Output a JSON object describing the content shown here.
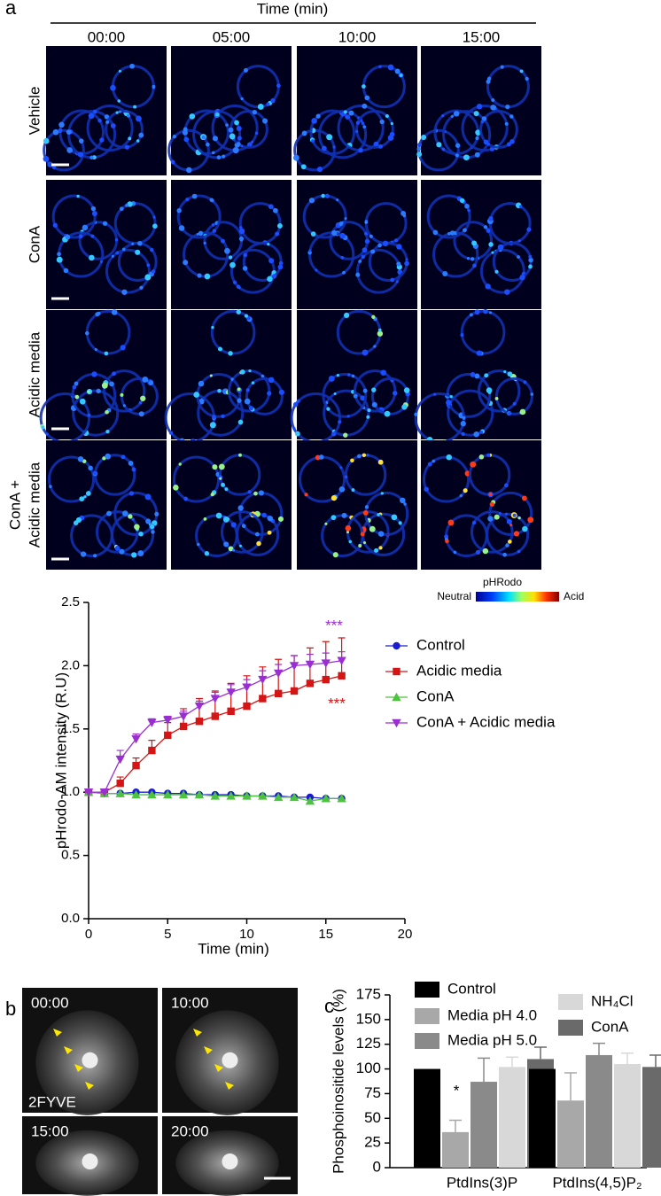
{
  "panel_a": {
    "label": "a",
    "header": "Time (min)",
    "timepoints": [
      "00:00",
      "05:00",
      "10:00",
      "15:00"
    ],
    "rows": [
      "Vehicle",
      "ConA",
      "Acidic media",
      "ConA +",
      "Acidic media"
    ],
    "colorbar": {
      "title": "pHRodo",
      "low": "Neutral",
      "high": "Acid"
    }
  },
  "panel_b": {
    "label": "b",
    "timepoints": [
      "00:00",
      "10:00",
      "15:00",
      "20:00"
    ],
    "probe": "2FYVE"
  },
  "panel_c": {
    "label": "c"
  },
  "chart_data": [
    {
      "type": "line",
      "xlabel": "Time (min)",
      "ylabel": "pHrodo-AM intensity (R.U)",
      "x": [
        0,
        1,
        2,
        3,
        4,
        5,
        6,
        7,
        8,
        9,
        10,
        11,
        12,
        13,
        14,
        15,
        16
      ],
      "series": [
        {
          "name": "Control",
          "color": "#1c1ccf",
          "marker": "circle",
          "values": [
            1.0,
            0.99,
            0.99,
            1.0,
            1.0,
            0.99,
            0.99,
            0.98,
            0.98,
            0.98,
            0.97,
            0.97,
            0.97,
            0.96,
            0.96,
            0.95,
            0.95
          ]
        },
        {
          "name": "Acidic media",
          "color": "#d41515",
          "marker": "square",
          "values": [
            1.0,
            1.0,
            1.07,
            1.21,
            1.33,
            1.45,
            1.52,
            1.56,
            1.6,
            1.64,
            1.68,
            1.74,
            1.78,
            1.8,
            1.86,
            1.89,
            1.92
          ],
          "errors": [
            0,
            0.02,
            0.05,
            0.06,
            0.08,
            0.1,
            0.14,
            0.18,
            0.2,
            0.22,
            0.24,
            0.25,
            0.27,
            0.28,
            0.28,
            0.3,
            0.3
          ]
        },
        {
          "name": "ConA",
          "color": "#4cc23f",
          "marker": "triangle-up",
          "values": [
            1.0,
            0.99,
            0.99,
            0.98,
            0.98,
            0.98,
            0.98,
            0.98,
            0.97,
            0.97,
            0.97,
            0.97,
            0.96,
            0.96,
            0.93,
            0.95,
            0.95
          ]
        },
        {
          "name": "ConA + Acidic media",
          "color": "#9a2fd1",
          "marker": "triangle-down",
          "values": [
            1.0,
            1.0,
            1.26,
            1.42,
            1.55,
            1.57,
            1.6,
            1.68,
            1.74,
            1.79,
            1.83,
            1.89,
            1.94,
            2.0,
            2.01,
            2.02,
            2.04
          ],
          "errors": [
            0,
            0.02,
            0.07,
            0.04,
            0.03,
            0.03,
            0.04,
            0.04,
            0.05,
            0.06,
            0.06,
            0.07,
            0.07,
            0.08,
            0.08,
            0.08,
            0.07
          ]
        }
      ],
      "annotations": [
        {
          "text": "***",
          "color": "#9a2fd1"
        },
        {
          "text": "***",
          "color": "#d41515"
        }
      ],
      "xlim": [
        0,
        20
      ],
      "xticks": [
        0,
        5,
        10,
        15,
        20
      ],
      "ylim": [
        0,
        2.5
      ],
      "yticks": [
        {
          "value": 0,
          "label": "0.0"
        },
        0.5,
        {
          "value": 1,
          "label": "1.0"
        },
        1.5,
        {
          "value": 2,
          "label": "2.0"
        },
        2.5
      ]
    },
    {
      "type": "bar",
      "ylabel": "Phosphoinositide levels (%)",
      "categories": [
        "PtdIns(3)P",
        "PtdIns(4,5)P₂"
      ],
      "series": [
        {
          "name": "Control",
          "color": "#000000",
          "values": [
            100,
            100
          ]
        },
        {
          "name": "Media pH 4.0",
          "color": "#a8a8a8",
          "values": [
            36,
            68
          ],
          "errors": [
            12,
            28
          ]
        },
        {
          "name": "Media pH 5.0",
          "color": "#8a8a8a",
          "values": [
            87,
            114
          ],
          "errors": [
            24,
            12
          ]
        },
        {
          "name": "NH₄Cl",
          "color": "#d8d8d8",
          "values": [
            102,
            105
          ],
          "errors": [
            10,
            11
          ]
        },
        {
          "name": "ConA",
          "color": "#6a6a6a",
          "values": [
            110,
            102
          ],
          "errors": [
            12,
            12
          ]
        }
      ],
      "annotations": [
        {
          "text": "*"
        }
      ],
      "ylim": [
        0,
        175
      ],
      "yticks": [
        0,
        25,
        50,
        75,
        100,
        125,
        150,
        175
      ]
    }
  ]
}
